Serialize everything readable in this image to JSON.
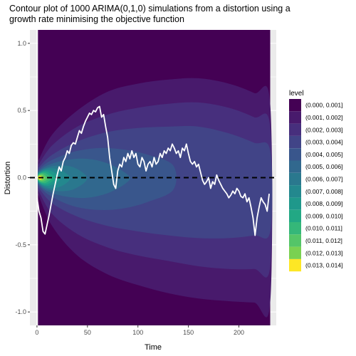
{
  "chart_data": {
    "type": "contour",
    "title_lines": [
      "Contour plot of 1000 ARIMA(0,1,0) simulations from a distortion using a",
      "growth rate minimising the objective function"
    ],
    "xlabel": "Time",
    "ylabel": "Distortion",
    "xlim": [
      -7,
      237
    ],
    "ylim": [
      -1.1,
      1.1
    ],
    "x_ticks": [
      0,
      50,
      100,
      150,
      200
    ],
    "y_ticks": [
      1.0,
      0.5,
      0.0,
      -0.5,
      -1.0
    ],
    "y_tick_labels": [
      "1.0",
      "0.5",
      "0.0",
      "-0.5",
      "-1.0"
    ],
    "contour_x_range": [
      1,
      231
    ],
    "reference_line": {
      "y": 0,
      "style": "dashed",
      "color": "#000000"
    },
    "colors": {
      "panel_background": "#ebebeb",
      "grid": "#ffffff",
      "path": "#ffffff"
    },
    "legend": {
      "title": "level",
      "position": "right",
      "entries": [
        {
          "label": "(0.000, 0.001]",
          "color": "#440154"
        },
        {
          "label": "(0.001, 0.002]",
          "color": "#481a6c"
        },
        {
          "label": "(0.002, 0.003]",
          "color": "#472f7d"
        },
        {
          "label": "(0.003, 0.004]",
          "color": "#414487"
        },
        {
          "label": "(0.004, 0.005]",
          "color": "#39568c"
        },
        {
          "label": "(0.005, 0.006]",
          "color": "#31688e"
        },
        {
          "label": "(0.006, 0.007]",
          "color": "#2a788e"
        },
        {
          "label": "(0.007, 0.008]",
          "color": "#23888e"
        },
        {
          "label": "(0.008, 0.009]",
          "color": "#1f988b"
        },
        {
          "label": "(0.009, 0.010]",
          "color": "#22a884"
        },
        {
          "label": "(0.010, 0.011]",
          "color": "#35b779"
        },
        {
          "label": "(0.011, 0.012]",
          "color": "#54c568"
        },
        {
          "label": "(0.012, 0.013]",
          "color": "#7ad151"
        },
        {
          "label": "(0.013, 0.014]",
          "color": "#fde725"
        }
      ]
    },
    "contour_bands": [
      {
        "level_index": 1,
        "upper": [
          [
            1,
            0.12
          ],
          [
            15,
            0.32
          ],
          [
            40,
            0.5
          ],
          [
            70,
            0.64
          ],
          [
            100,
            0.7
          ],
          [
            130,
            0.73
          ],
          [
            160,
            0.74
          ],
          [
            190,
            0.7
          ],
          [
            215,
            0.63
          ],
          [
            231,
            0.55
          ]
        ],
        "lower": [
          [
            1,
            -0.12
          ],
          [
            15,
            -0.36
          ],
          [
            40,
            -0.58
          ],
          [
            70,
            -0.72
          ],
          [
            100,
            -0.8
          ],
          [
            130,
            -0.86
          ],
          [
            160,
            -0.9
          ],
          [
            190,
            -0.92
          ],
          [
            215,
            -0.93
          ],
          [
            231,
            -0.93
          ]
        ]
      },
      {
        "level_index": 2,
        "upper": [
          [
            1,
            0.09
          ],
          [
            15,
            0.24
          ],
          [
            40,
            0.38
          ],
          [
            70,
            0.47
          ],
          [
            100,
            0.52
          ],
          [
            130,
            0.55
          ],
          [
            160,
            0.56
          ],
          [
            190,
            0.52
          ],
          [
            215,
            0.45
          ],
          [
            231,
            0.38
          ]
        ],
        "lower": [
          [
            1,
            -0.09
          ],
          [
            15,
            -0.27
          ],
          [
            40,
            -0.42
          ],
          [
            70,
            -0.52
          ],
          [
            100,
            -0.58
          ],
          [
            130,
            -0.62
          ],
          [
            160,
            -0.66
          ],
          [
            190,
            -0.68
          ],
          [
            215,
            -0.68
          ],
          [
            231,
            -0.66
          ]
        ]
      },
      {
        "level_index": 3,
        "upper": [
          [
            1,
            0.07
          ],
          [
            15,
            0.17
          ],
          [
            40,
            0.27
          ],
          [
            70,
            0.34
          ],
          [
            100,
            0.37
          ],
          [
            130,
            0.38
          ],
          [
            160,
            0.38
          ],
          [
            190,
            0.33
          ],
          [
            215,
            0.26
          ],
          [
            231,
            0.2
          ]
        ],
        "lower": [
          [
            1,
            -0.07
          ],
          [
            15,
            -0.19
          ],
          [
            40,
            -0.29
          ],
          [
            70,
            -0.36
          ],
          [
            100,
            -0.4
          ],
          [
            130,
            -0.43
          ],
          [
            160,
            -0.45
          ],
          [
            190,
            -0.45
          ],
          [
            215,
            -0.43
          ],
          [
            231,
            -0.4
          ]
        ]
      },
      {
        "level_index": 4,
        "upper": [
          [
            1,
            0.055
          ],
          [
            12,
            0.12
          ],
          [
            35,
            0.19
          ],
          [
            60,
            0.22
          ],
          [
            85,
            0.21
          ],
          [
            110,
            0.17
          ],
          [
            135,
            0.09
          ]
        ],
        "lower": [
          [
            135,
            -0.09
          ],
          [
            110,
            -0.18
          ],
          [
            85,
            -0.23
          ],
          [
            60,
            -0.24
          ],
          [
            35,
            -0.21
          ],
          [
            12,
            -0.13
          ],
          [
            1,
            -0.055
          ]
        ]
      },
      {
        "level_index": 5,
        "upper": [
          [
            1,
            0.045
          ],
          [
            10,
            0.09
          ],
          [
            28,
            0.13
          ],
          [
            50,
            0.14
          ],
          [
            72,
            0.1
          ],
          [
            90,
            0.02
          ]
        ],
        "lower": [
          [
            90,
            -0.03
          ],
          [
            72,
            -0.11
          ],
          [
            50,
            -0.15
          ],
          [
            28,
            -0.14
          ],
          [
            10,
            -0.1
          ],
          [
            1,
            -0.045
          ]
        ]
      },
      {
        "level_index": 6,
        "upper": [
          [
            1,
            0.04
          ],
          [
            8,
            0.07
          ],
          [
            20,
            0.09
          ],
          [
            35,
            0.08
          ],
          [
            48,
            0.02
          ]
        ],
        "lower": [
          [
            48,
            -0.03
          ],
          [
            35,
            -0.09
          ],
          [
            20,
            -0.1
          ],
          [
            8,
            -0.08
          ],
          [
            1,
            -0.04
          ]
        ]
      },
      {
        "level_index": 7,
        "upper": [
          [
            1,
            0.035
          ],
          [
            7,
            0.06
          ],
          [
            15,
            0.07
          ],
          [
            25,
            0.05
          ],
          [
            32,
            0.01
          ]
        ],
        "lower": [
          [
            32,
            -0.02
          ],
          [
            25,
            -0.06
          ],
          [
            15,
            -0.08
          ],
          [
            7,
            -0.065
          ],
          [
            1,
            -0.035
          ]
        ]
      },
      {
        "level_index": 8,
        "upper": [
          [
            1,
            0.03
          ],
          [
            6,
            0.05
          ],
          [
            12,
            0.055
          ],
          [
            19,
            0.03
          ],
          [
            23,
            0.0
          ]
        ],
        "lower": [
          [
            23,
            -0.01
          ],
          [
            19,
            -0.04
          ],
          [
            12,
            -0.06
          ],
          [
            6,
            -0.055
          ],
          [
            1,
            -0.03
          ]
        ]
      },
      {
        "level_index": 9,
        "upper": [
          [
            1,
            0.025
          ],
          [
            5,
            0.042
          ],
          [
            10,
            0.045
          ],
          [
            15,
            0.02
          ],
          [
            18,
            0.0
          ]
        ],
        "lower": [
          [
            18,
            -0.01
          ],
          [
            15,
            -0.03
          ],
          [
            10,
            -0.05
          ],
          [
            5,
            -0.045
          ],
          [
            1,
            -0.025
          ]
        ]
      },
      {
        "level_index": 10,
        "upper": [
          [
            1,
            0.02
          ],
          [
            4,
            0.034
          ],
          [
            8,
            0.035
          ],
          [
            12,
            0.015
          ],
          [
            14,
            0.0
          ]
        ],
        "lower": [
          [
            14,
            -0.01
          ],
          [
            12,
            -0.025
          ],
          [
            8,
            -0.04
          ],
          [
            4,
            -0.036
          ],
          [
            1,
            -0.02
          ]
        ]
      },
      {
        "level_index": 11,
        "upper": [
          [
            1,
            0.016
          ],
          [
            3,
            0.026
          ],
          [
            6,
            0.027
          ],
          [
            9,
            0.01
          ],
          [
            11,
            0.0
          ]
        ],
        "lower": [
          [
            11,
            -0.008
          ],
          [
            9,
            -0.02
          ],
          [
            6,
            -0.03
          ],
          [
            3,
            -0.028
          ],
          [
            1,
            -0.016
          ]
        ]
      },
      {
        "level_index": 12,
        "upper": [
          [
            1,
            0.012
          ],
          [
            3,
            0.019
          ],
          [
            5,
            0.019
          ],
          [
            7,
            0.005
          ],
          [
            8,
            0.0
          ]
        ],
        "lower": [
          [
            8,
            -0.005
          ],
          [
            7,
            -0.013
          ],
          [
            5,
            -0.022
          ],
          [
            3,
            -0.02
          ],
          [
            1,
            -0.012
          ]
        ]
      },
      {
        "level_index": 13,
        "upper": [
          [
            1,
            0.008
          ],
          [
            2,
            0.012
          ],
          [
            4,
            0.012
          ],
          [
            5,
            0.0
          ]
        ],
        "lower": [
          [
            5,
            -0.005
          ],
          [
            4,
            -0.014
          ],
          [
            2,
            -0.013
          ],
          [
            1,
            -0.008
          ]
        ]
      }
    ],
    "path": {
      "x": [
        0,
        2,
        4,
        6,
        8,
        10,
        12,
        14,
        16,
        18,
        20,
        22,
        24,
        26,
        28,
        30,
        32,
        34,
        36,
        38,
        40,
        42,
        44,
        46,
        48,
        50,
        52,
        54,
        56,
        58,
        60,
        62,
        64,
        66,
        68,
        70,
        72,
        74,
        76,
        78,
        80,
        82,
        84,
        86,
        88,
        90,
        92,
        94,
        96,
        98,
        100,
        102,
        104,
        106,
        108,
        110,
        112,
        114,
        116,
        118,
        120,
        122,
        124,
        126,
        128,
        130,
        132,
        134,
        136,
        138,
        140,
        142,
        144,
        146,
        148,
        150,
        152,
        154,
        156,
        158,
        160,
        162,
        164,
        166,
        168,
        170,
        172,
        174,
        176,
        178,
        180,
        182,
        184,
        186,
        188,
        190,
        192,
        194,
        196,
        198,
        200,
        202,
        204,
        206,
        208,
        210,
        212,
        214,
        216,
        218,
        220,
        222,
        224,
        226,
        228,
        230
      ],
      "y": [
        -0.15,
        -0.25,
        -0.3,
        -0.4,
        -0.42,
        -0.35,
        -0.28,
        -0.2,
        -0.12,
        -0.05,
        0.02,
        0.08,
        0.05,
        0.12,
        0.15,
        0.2,
        0.18,
        0.24,
        0.26,
        0.25,
        0.3,
        0.35,
        0.33,
        0.38,
        0.42,
        0.45,
        0.48,
        0.47,
        0.5,
        0.49,
        0.52,
        0.53,
        0.45,
        0.47,
        0.38,
        0.3,
        0.15,
        0.05,
        -0.05,
        -0.08,
        0.05,
        0.1,
        0.08,
        0.15,
        0.12,
        0.18,
        0.14,
        0.2,
        0.15,
        0.18,
        0.1,
        0.08,
        0.15,
        0.12,
        0.05,
        0.1,
        0.12,
        0.08,
        0.15,
        0.1,
        0.12,
        0.18,
        0.15,
        0.2,
        0.18,
        0.22,
        0.2,
        0.25,
        0.22,
        0.18,
        0.2,
        0.15,
        0.22,
        0.2,
        0.25,
        0.18,
        0.12,
        0.1,
        0.12,
        0.08,
        0.1,
        0.04,
        -0.02,
        -0.05,
        -0.03,
        0.0,
        -0.08,
        -0.03,
        -0.05,
        0.02,
        -0.02,
        -0.05,
        -0.08,
        -0.1,
        -0.12,
        -0.15,
        -0.13,
        -0.1,
        -0.12,
        -0.08,
        -0.1,
        -0.14,
        -0.15,
        -0.12,
        -0.18,
        -0.15,
        -0.22,
        -0.3,
        -0.43,
        -0.3,
        -0.22,
        -0.15,
        -0.18,
        -0.2,
        -0.25,
        -0.12
      ]
    }
  }
}
